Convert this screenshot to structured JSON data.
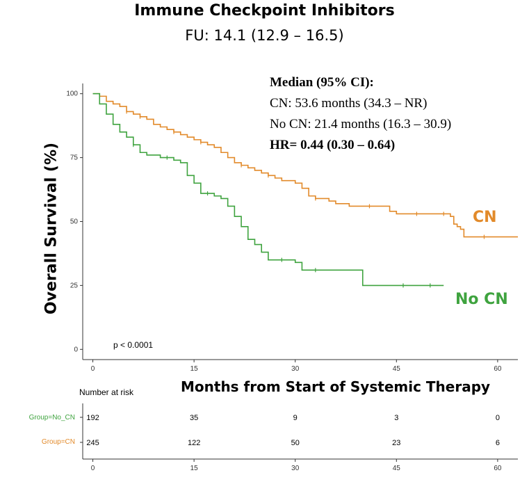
{
  "title": "Immune Checkpoint Inhibitors",
  "subtitle": "FU: 14.1 (12.9 – 16.5)",
  "colors": {
    "cn": "#E28A2A",
    "no_cn": "#3FA33F",
    "axis": "#333333"
  },
  "median_box": {
    "heading": "Median (95% CI):",
    "cn_line": "CN: 53.6  months (34.3 – NR)",
    "no_cn_line": "No CN: 21.4 months (16.3 – 30.9)",
    "hr_line": "HR= 0.44 (0.30 – 0.64)"
  },
  "group_labels": {
    "cn": "CN",
    "no_cn": "No CN"
  },
  "p_value": "p < 0.0001",
  "risk_table": {
    "heading": "Number at risk",
    "rows": [
      {
        "label": "Group=No_CN",
        "group": "no_cn",
        "values": [
          "192",
          "35",
          "9",
          "3",
          "0"
        ]
      },
      {
        "label": "Group=CN",
        "group": "cn",
        "values": [
          "245",
          "122",
          "50",
          "23",
          "6"
        ]
      }
    ],
    "x_ticks": [
      "0",
      "15",
      "30",
      "45",
      "60"
    ]
  },
  "chart_data": {
    "type": "line",
    "title": "",
    "xlabel": "Months from Start of Systemic Therapy",
    "ylabel": "Overall Survival (%)",
    "xlim": [
      -1.5,
      63
    ],
    "ylim": [
      -4,
      104
    ],
    "x_ticks": [
      0,
      15,
      30,
      45,
      60
    ],
    "y_ticks": [
      0,
      25,
      50,
      75,
      100
    ],
    "x_tick_labels": [
      "0",
      "15",
      "30",
      "45",
      "60"
    ],
    "y_tick_labels": [
      "0",
      "25",
      "50",
      "75",
      "100"
    ],
    "series": [
      {
        "name": "CN",
        "color_key": "cn",
        "points": [
          [
            0,
            100
          ],
          [
            1,
            99
          ],
          [
            2,
            97
          ],
          [
            3,
            96
          ],
          [
            4,
            95
          ],
          [
            5,
            93
          ],
          [
            6,
            92
          ],
          [
            7,
            91
          ],
          [
            8,
            90
          ],
          [
            9,
            88
          ],
          [
            10,
            87
          ],
          [
            11,
            86
          ],
          [
            12,
            85
          ],
          [
            13,
            84
          ],
          [
            14,
            83
          ],
          [
            15,
            82
          ],
          [
            16,
            81
          ],
          [
            17,
            80
          ],
          [
            18,
            79
          ],
          [
            19,
            77
          ],
          [
            20,
            75
          ],
          [
            21,
            73
          ],
          [
            22,
            72
          ],
          [
            23,
            71
          ],
          [
            24,
            70
          ],
          [
            25,
            69
          ],
          [
            26,
            68
          ],
          [
            27,
            67
          ],
          [
            28,
            66
          ],
          [
            30,
            65
          ],
          [
            31,
            63
          ],
          [
            32,
            60
          ],
          [
            33,
            59
          ],
          [
            35,
            58
          ],
          [
            36,
            57
          ],
          [
            38,
            56
          ],
          [
            42,
            56
          ],
          [
            44,
            54
          ],
          [
            45,
            53
          ],
          [
            50,
            53
          ],
          [
            53,
            52
          ],
          [
            53.5,
            49
          ],
          [
            54,
            48
          ],
          [
            54.5,
            47
          ],
          [
            55,
            44
          ],
          [
            63,
            44
          ]
        ],
        "censor_x": [
          5,
          7,
          12,
          16,
          22,
          26,
          33,
          41,
          48,
          52,
          58
        ]
      },
      {
        "name": "No CN",
        "color_key": "no_cn",
        "points": [
          [
            0,
            100
          ],
          [
            1,
            96
          ],
          [
            2,
            92
          ],
          [
            3,
            88
          ],
          [
            4,
            85
          ],
          [
            5,
            83
          ],
          [
            6,
            80
          ],
          [
            7,
            77
          ],
          [
            8,
            76
          ],
          [
            10,
            75
          ],
          [
            12,
            74
          ],
          [
            13,
            73
          ],
          [
            14,
            68
          ],
          [
            15,
            65
          ],
          [
            16,
            61
          ],
          [
            18,
            60
          ],
          [
            19,
            59
          ],
          [
            20,
            56
          ],
          [
            21,
            52
          ],
          [
            22,
            48
          ],
          [
            23,
            43
          ],
          [
            24,
            41
          ],
          [
            25,
            38
          ],
          [
            26,
            35
          ],
          [
            30,
            34
          ],
          [
            31,
            31
          ],
          [
            34,
            31
          ],
          [
            40,
            25
          ],
          [
            52,
            25
          ]
        ],
        "censor_x": [
          6,
          11,
          17,
          28,
          33,
          46,
          50
        ]
      }
    ]
  }
}
